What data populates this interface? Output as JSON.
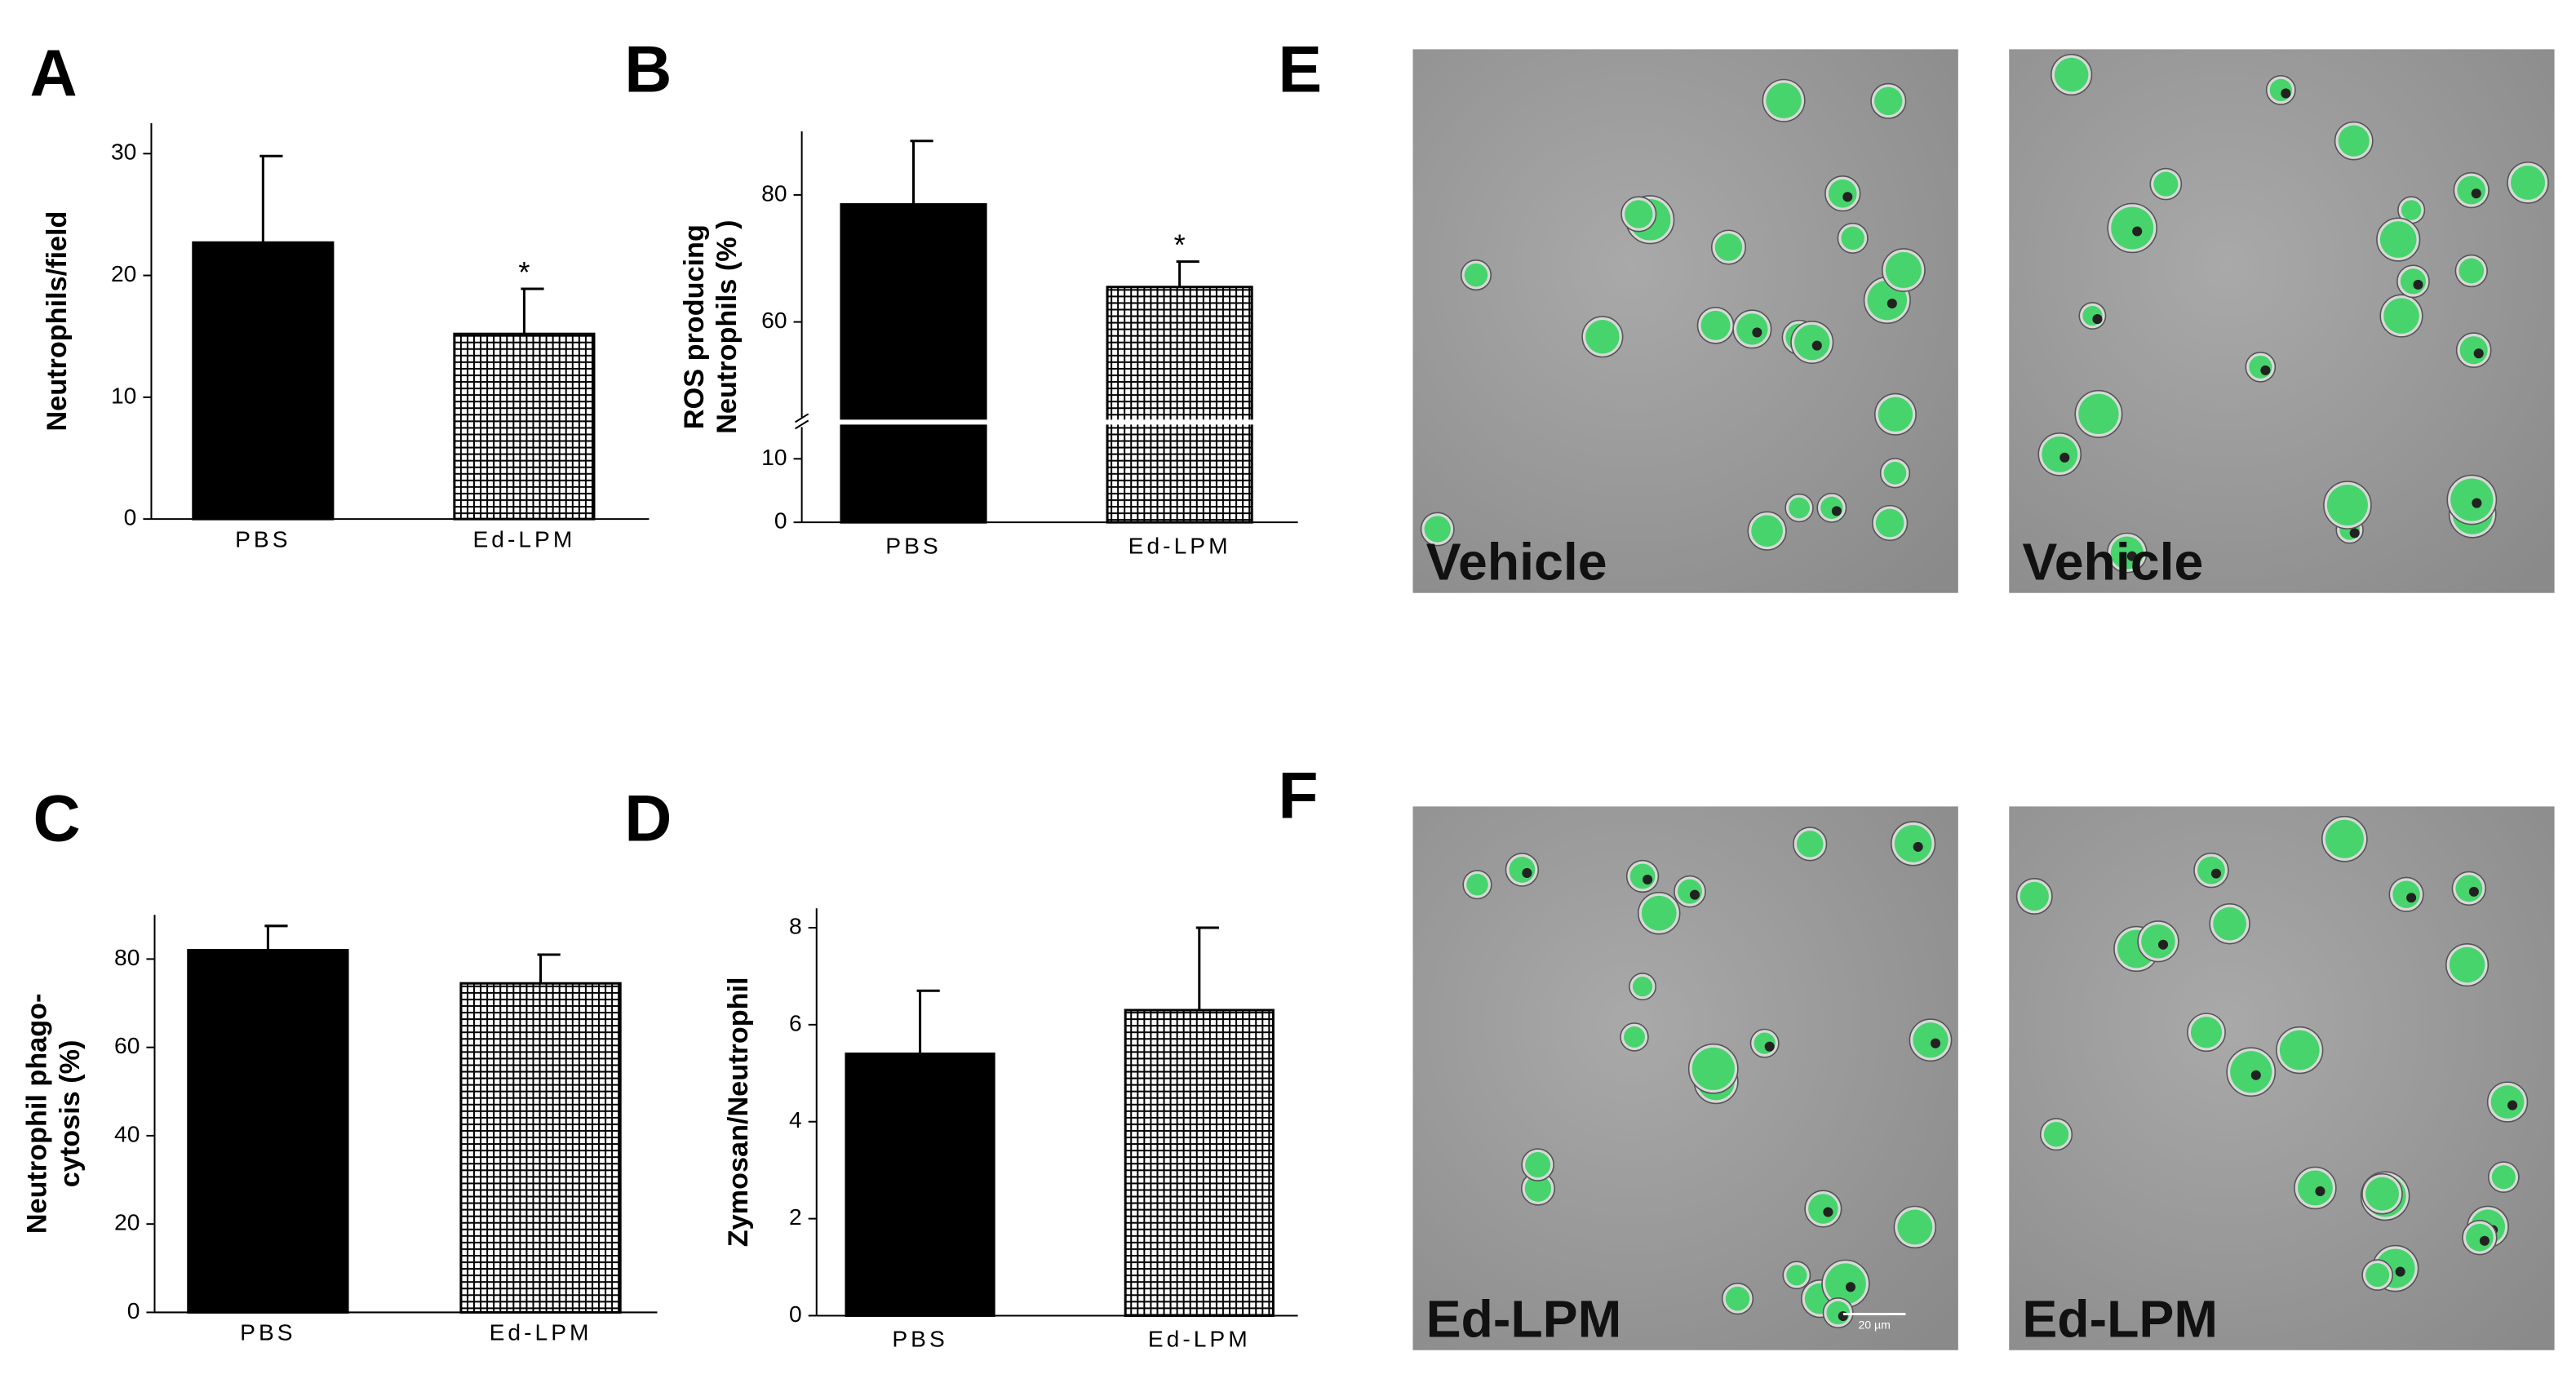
{
  "chart_data": [
    {
      "type": "bar",
      "panel": "A",
      "ylabel": [
        "Neutrophils/field"
      ],
      "categories": [
        "PBS",
        "Ed-LPM"
      ],
      "values": [
        22.7,
        15.2
      ],
      "errors": [
        7.1,
        3.7
      ],
      "value_annotations": [
        null,
        "*"
      ],
      "color": "#000000",
      "fills": [
        "solid",
        "grid"
      ],
      "ylim": [
        0,
        32.5
      ],
      "yticks": [
        0,
        10,
        20,
        30
      ]
    },
    {
      "type": "bar",
      "panel": "B",
      "ylabel": [
        "ROS producing",
        "Neutrophils (% )"
      ],
      "categories": [
        "PBS",
        "Ed-LPM"
      ],
      "values": [
        78.5,
        65.5
      ],
      "errors": [
        10,
        4
      ],
      "value_annotations": [
        null,
        "*"
      ],
      "color": "#000000",
      "fills": [
        "solid",
        "grid"
      ],
      "ylim": [
        0,
        90
      ],
      "ybreak": [
        15,
        45
      ],
      "yticks": [
        0,
        10,
        60,
        80
      ]
    },
    {
      "type": "bar",
      "panel": "C",
      "ylabel": [
        "Neutrophil phago-",
        "cytosis (%)"
      ],
      "categories": [
        "PBS",
        "Ed-LPM"
      ],
      "values": [
        82,
        74.5
      ],
      "errors": [
        5.5,
        6.5
      ],
      "color": "#000000",
      "fills": [
        "solid",
        "grid"
      ],
      "ylim": [
        0,
        90
      ],
      "yticks": [
        0,
        20,
        40,
        60,
        80
      ]
    },
    {
      "type": "bar",
      "panel": "D",
      "ylabel": [
        "Zymosan/Neutrophil"
      ],
      "categories": [
        "PBS",
        "Ed-LPM"
      ],
      "values": [
        5.4,
        6.3
      ],
      "errors": [
        1.3,
        1.7
      ],
      "color": "#000000",
      "fills": [
        "solid",
        "grid"
      ],
      "ylim": [
        0,
        8.4
      ],
      "yticks": [
        0,
        2,
        4,
        6,
        8
      ]
    }
  ],
  "images": [
    {
      "panel": "E",
      "labels": [
        "Vehicle",
        "Vehicle"
      ]
    },
    {
      "panel": "F",
      "labels": [
        "Ed-LPM",
        "Ed-LPM"
      ],
      "scale_bar": "20 µm"
    }
  ]
}
